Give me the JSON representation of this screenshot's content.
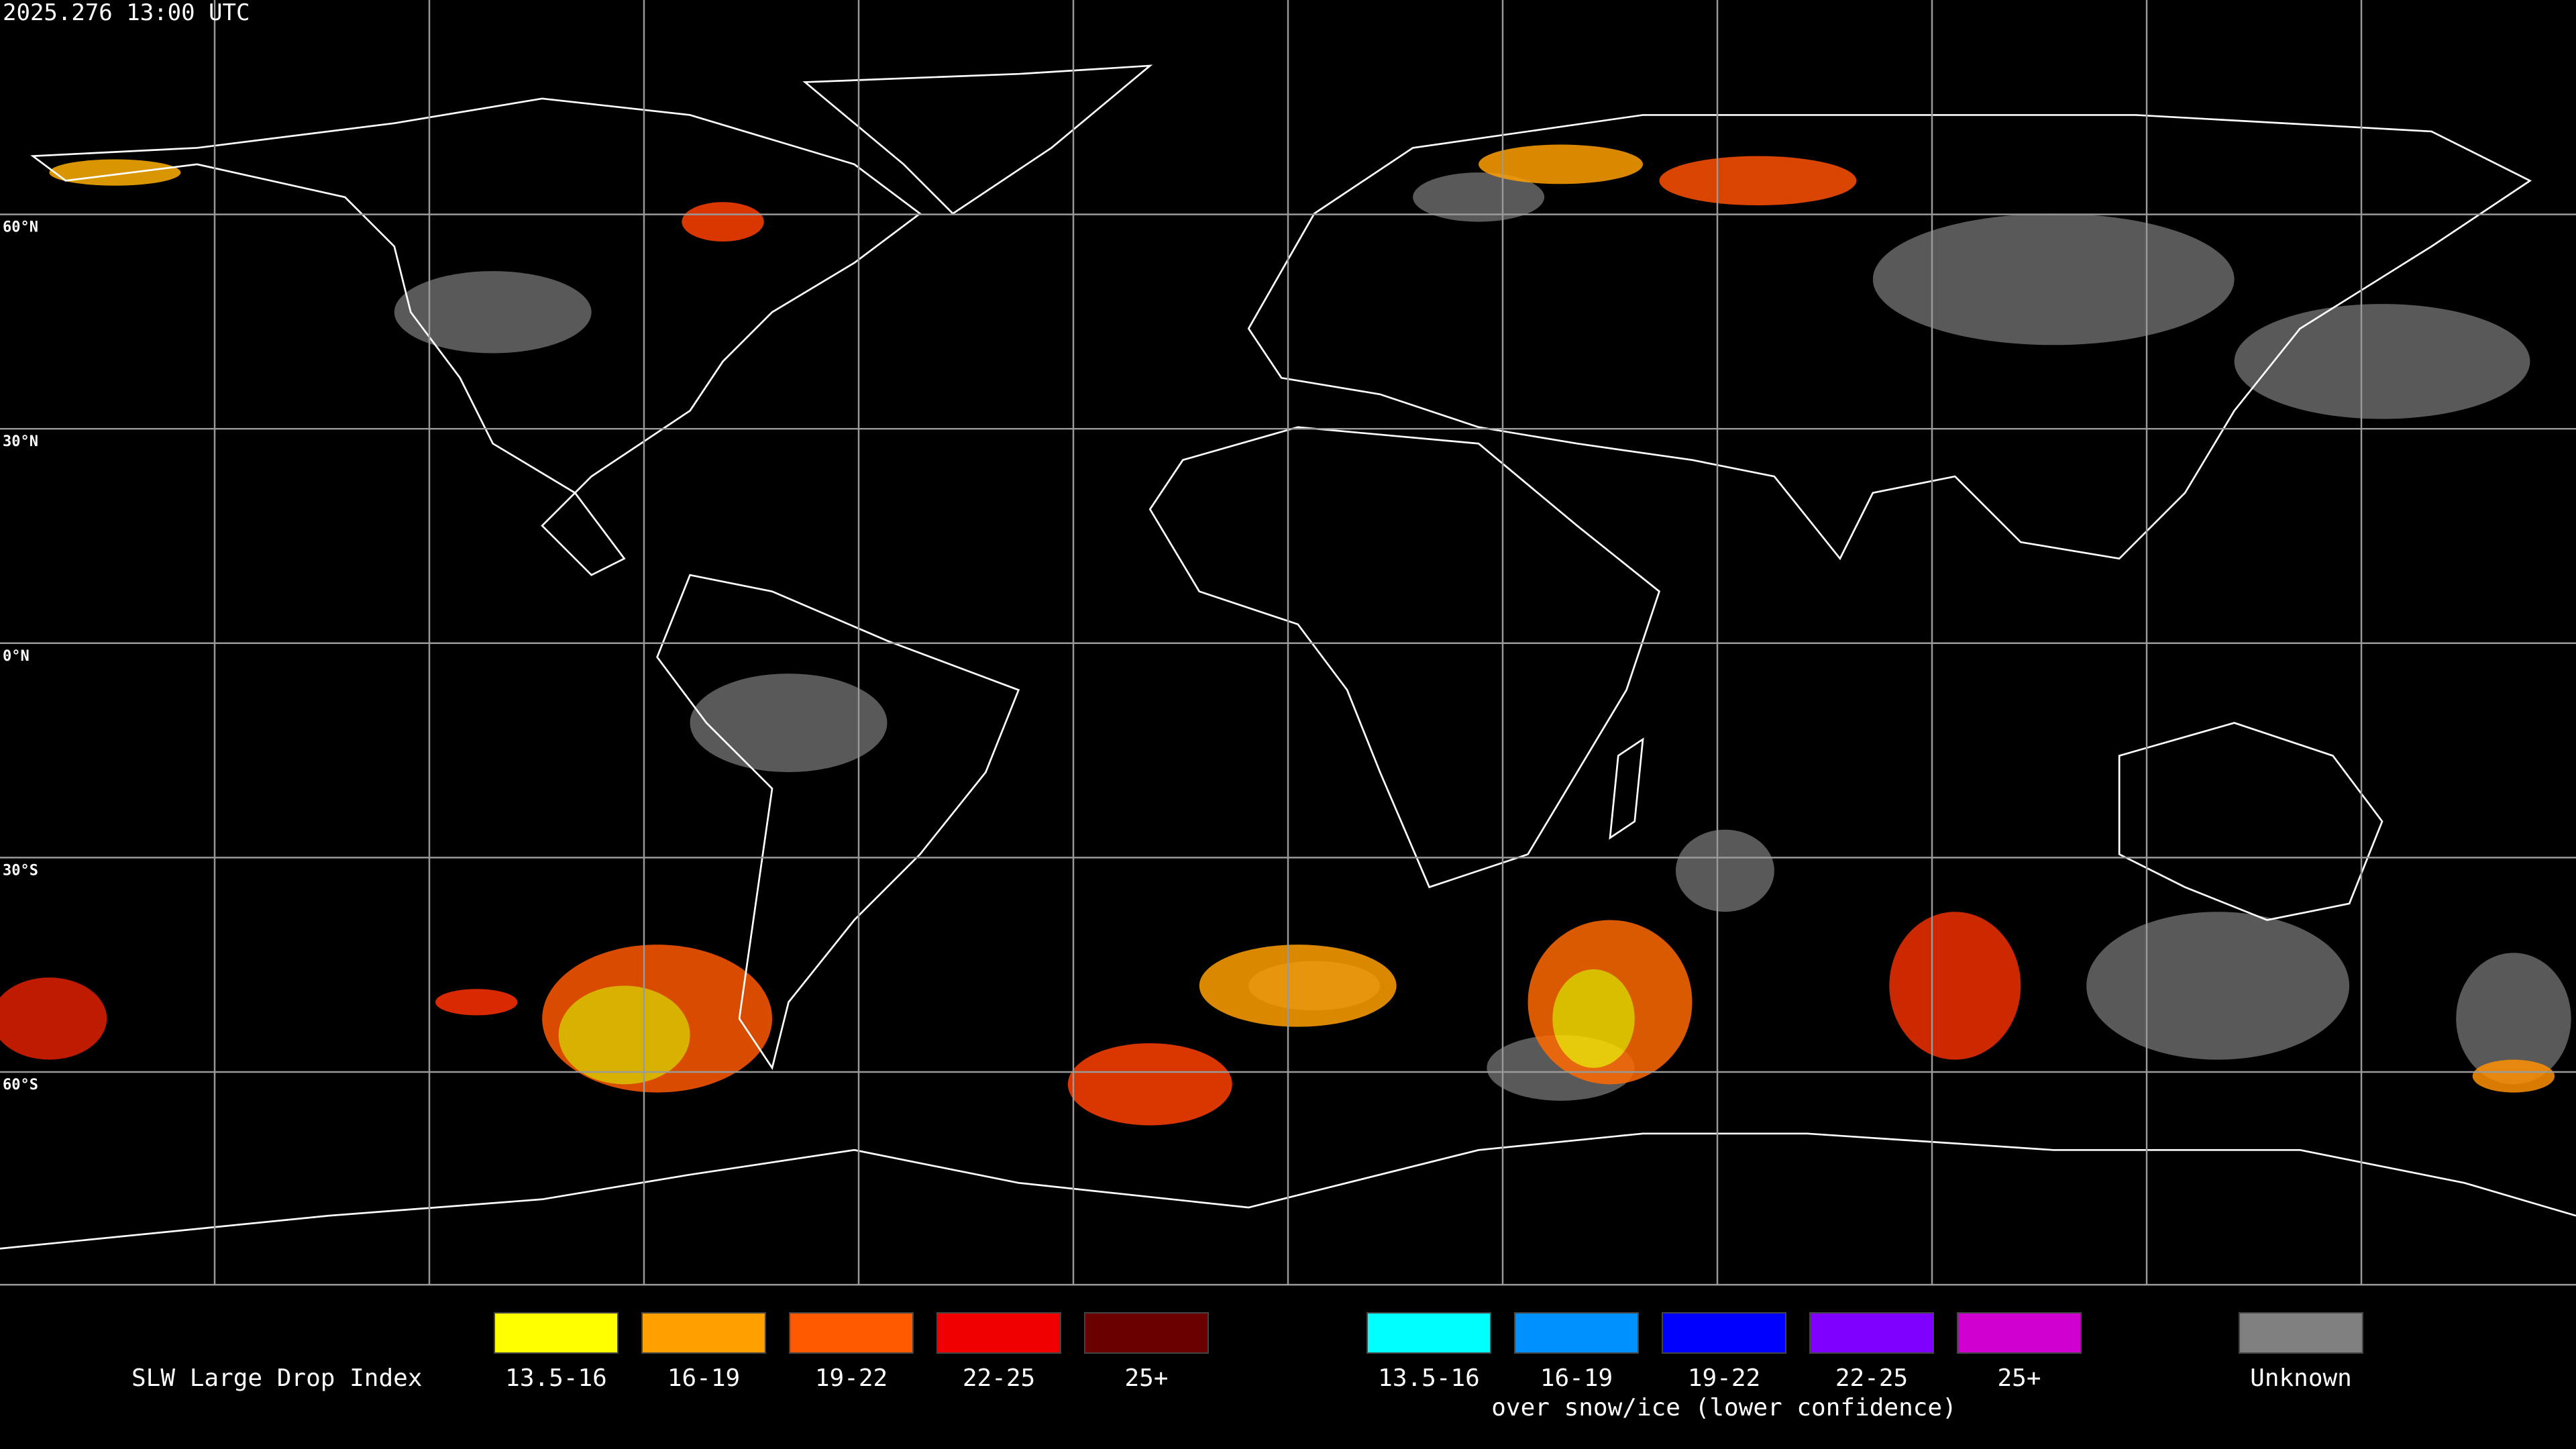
{
  "header": {
    "timestamp": "2025.276 13:00 UTC"
  },
  "map": {
    "latitude_labels": [
      "60°N",
      "30°N",
      "0°N",
      "30°S",
      "60°S"
    ]
  },
  "legend": {
    "title": "SLW Large Drop Index",
    "groups": [
      {
        "items": [
          {
            "label": "13.5-16",
            "color": "#ffff00"
          },
          {
            "label": "16-19",
            "color": "#ffa000"
          },
          {
            "label": "19-22",
            "color": "#ff5a00"
          },
          {
            "label": "22-25",
            "color": "#f00000"
          },
          {
            "label": "25+",
            "color": "#6a0000"
          }
        ]
      },
      {
        "items": [
          {
            "label": "13.5-16",
            "color": "#00ffff"
          },
          {
            "label": "16-19",
            "color": "#0090ff"
          },
          {
            "label": "19-22",
            "color": "#0000ff"
          },
          {
            "label": "22-25",
            "color": "#8000ff"
          },
          {
            "label": "25+",
            "color": "#d000d0"
          }
        ],
        "note": "over snow/ice (lower confidence)"
      },
      {
        "items": [
          {
            "label": "Unknown",
            "color": "#808080"
          }
        ]
      }
    ]
  }
}
